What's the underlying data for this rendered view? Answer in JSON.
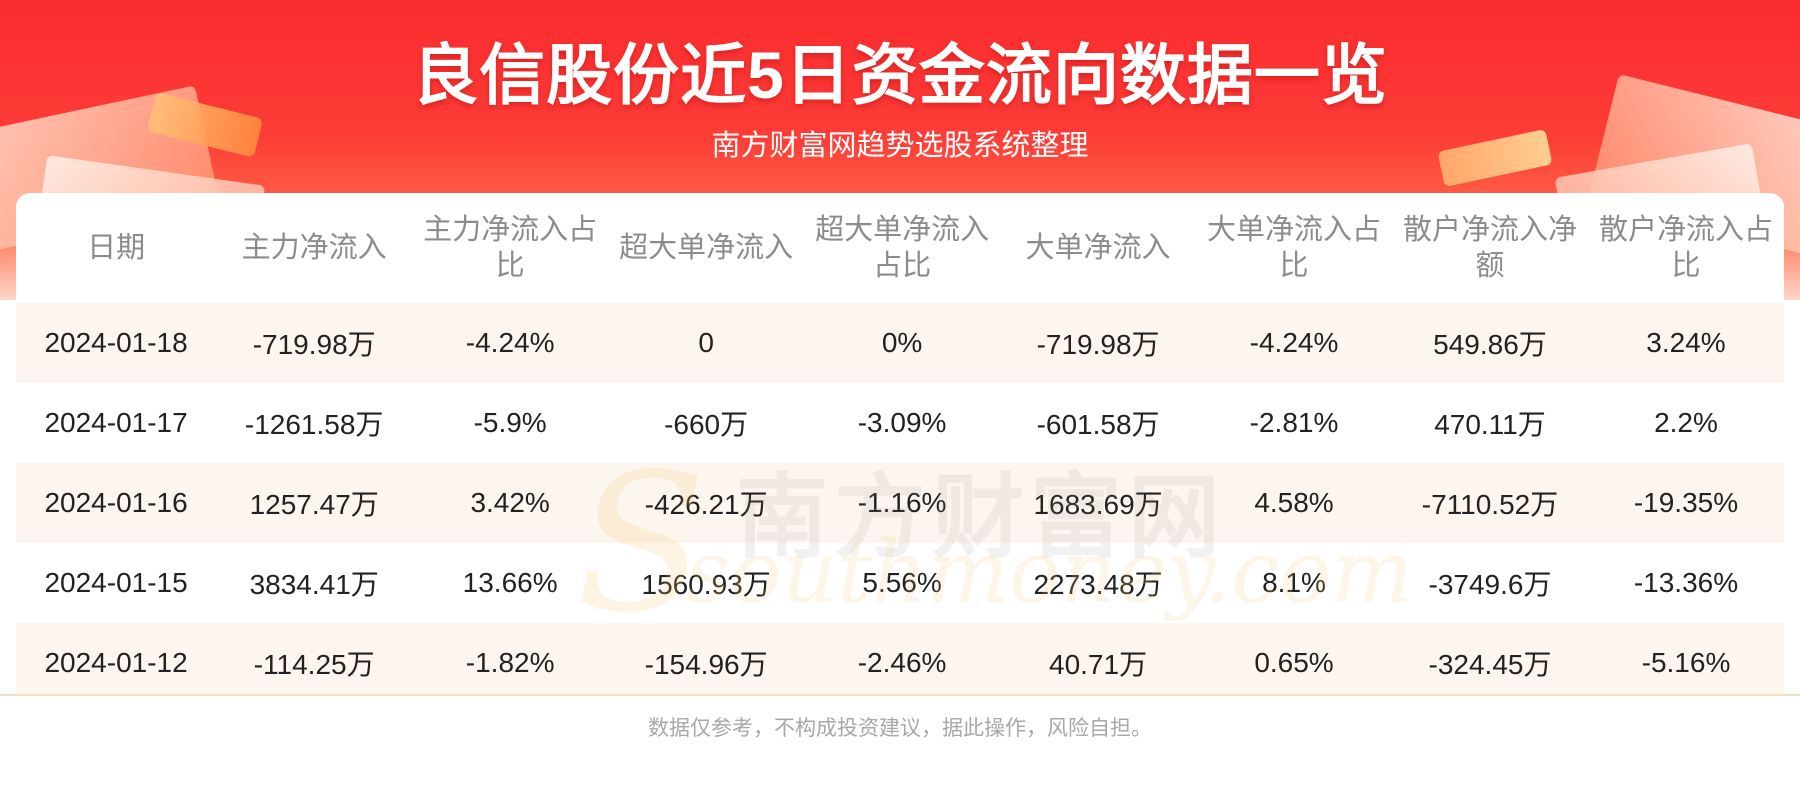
{
  "header": {
    "title": "良信股份近5日资金流向数据一览",
    "subtitle": "南方财富网趋势选股系统整理"
  },
  "watermark": {
    "cn": "南方财富网",
    "en": "southmoney.com"
  },
  "table": {
    "columns": [
      "日期",
      "主力净流入",
      "主力净流入占比",
      "超大单净流入",
      "超大单净流入占比",
      "大单净流入",
      "大单净流入占比",
      "散户净流入净额",
      "散户净流入占比"
    ],
    "rows": [
      [
        "2024-01-18",
        "-719.98万",
        "-4.24%",
        "0",
        "0%",
        "-719.98万",
        "-4.24%",
        "549.86万",
        "3.24%"
      ],
      [
        "2024-01-17",
        "-1261.58万",
        "-5.9%",
        "-660万",
        "-3.09%",
        "-601.58万",
        "-2.81%",
        "470.11万",
        "2.2%"
      ],
      [
        "2024-01-16",
        "1257.47万",
        "3.42%",
        "-426.21万",
        "-1.16%",
        "1683.69万",
        "4.58%",
        "-7110.52万",
        "-19.35%"
      ],
      [
        "2024-01-15",
        "3834.41万",
        "13.66%",
        "1560.93万",
        "5.56%",
        "2273.48万",
        "8.1%",
        "-3749.6万",
        "-13.36%"
      ],
      [
        "2024-01-12",
        "-114.25万",
        "-1.82%",
        "-154.96万",
        "-2.46%",
        "40.71万",
        "0.65%",
        "-324.45万",
        "-5.16%"
      ]
    ]
  },
  "footer": {
    "disclaimer": "数据仅参考，不构成投资建议，据此操作，风险自担。"
  },
  "colors": {
    "banner_red": "#fb2b2f",
    "row_stripe": "#fdf6ee",
    "header_text": "#8c8c8c"
  }
}
